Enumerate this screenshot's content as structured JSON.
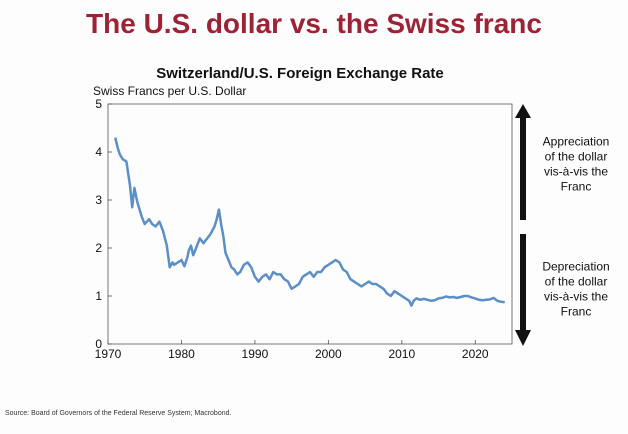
{
  "page": {
    "title": "The U.S. dollar vs. the Swiss franc",
    "source": "Source: Board of Governors of the Federal Reserve System; Macrobond."
  },
  "colors": {
    "title": "#9b2335",
    "line": "#5b8fc6",
    "arrow": "#111111"
  },
  "annotations": {
    "up": "Appreciation of the dollar vis-à-vis the Franc",
    "up_lines": [
      "Appreciation",
      "of the dollar",
      "vis-à-vis the",
      "Franc"
    ],
    "down": "Depreciation of the dollar vis-à-vis the Franc",
    "down_lines": [
      "Depreciation",
      "of the dollar",
      "vis-à-vis the",
      "Franc"
    ]
  },
  "chart_data": {
    "type": "line",
    "title": "Switzerland/U.S. Foreign Exchange Rate",
    "ylabel": "Swiss Francs per U.S. Dollar",
    "xlabel": "",
    "xlim": [
      1970,
      2025
    ],
    "ylim": [
      0,
      5
    ],
    "x_ticks": [
      1970,
      1980,
      1990,
      2000,
      2010,
      2020
    ],
    "y_ticks": [
      0,
      1,
      2,
      3,
      4,
      5
    ],
    "grid": false,
    "series": [
      {
        "x": [
          1971.0,
          1971.3,
          1971.6,
          1972.0,
          1972.5,
          1973.0,
          1973.3,
          1973.6,
          1974.0,
          1974.3,
          1974.6,
          1975.0,
          1975.3,
          1975.6,
          1976.0,
          1976.5,
          1977.0,
          1977.5,
          1978.0,
          1978.4,
          1978.8,
          1979.0,
          1979.5,
          1980.0,
          1980.4,
          1980.8,
          1981.0,
          1981.3,
          1981.6,
          1982.0,
          1982.5,
          1983.0,
          1983.5,
          1984.0,
          1984.5,
          1984.8,
          1985.1,
          1985.4,
          1985.7,
          1986.0,
          1986.4,
          1986.8,
          1987.2,
          1987.6,
          1988.0,
          1988.5,
          1989.0,
          1989.5,
          1990.0,
          1990.5,
          1991.0,
          1991.5,
          1992.0,
          1992.5,
          1993.0,
          1993.5,
          1994.0,
          1994.5,
          1995.0,
          1995.5,
          1996.0,
          1996.5,
          1997.0,
          1997.5,
          1998.0,
          1998.5,
          1999.0,
          1999.5,
          2000.0,
          2000.5,
          2001.0,
          2001.5,
          2002.0,
          2002.5,
          2003.0,
          2003.5,
          2004.0,
          2004.5,
          2005.0,
          2005.5,
          2006.0,
          2006.5,
          2007.0,
          2007.5,
          2008.0,
          2008.5,
          2009.0,
          2009.5,
          2010.0,
          2010.5,
          2011.0,
          2011.3,
          2011.6,
          2012.0,
          2012.5,
          2013.0,
          2013.5,
          2014.0,
          2014.5,
          2015.0,
          2015.5,
          2016.0,
          2016.5,
          2017.0,
          2017.5,
          2018.0,
          2018.5,
          2019.0,
          2019.5,
          2020.0,
          2020.5,
          2021.0,
          2021.5,
          2022.0,
          2022.5,
          2023.0,
          2023.5,
          2024.0
        ],
        "y": [
          4.3,
          4.1,
          3.95,
          3.85,
          3.8,
          3.3,
          2.85,
          3.25,
          2.95,
          2.8,
          2.65,
          2.5,
          2.55,
          2.6,
          2.5,
          2.45,
          2.55,
          2.35,
          2.05,
          1.6,
          1.7,
          1.65,
          1.7,
          1.75,
          1.62,
          1.8,
          1.95,
          2.05,
          1.85,
          2.0,
          2.2,
          2.1,
          2.2,
          2.3,
          2.45,
          2.6,
          2.8,
          2.5,
          2.25,
          1.9,
          1.75,
          1.6,
          1.55,
          1.45,
          1.5,
          1.65,
          1.7,
          1.6,
          1.4,
          1.3,
          1.4,
          1.45,
          1.35,
          1.5,
          1.45,
          1.45,
          1.35,
          1.3,
          1.15,
          1.2,
          1.25,
          1.4,
          1.45,
          1.5,
          1.4,
          1.5,
          1.5,
          1.6,
          1.65,
          1.7,
          1.75,
          1.7,
          1.55,
          1.5,
          1.35,
          1.3,
          1.25,
          1.2,
          1.25,
          1.3,
          1.25,
          1.25,
          1.2,
          1.15,
          1.05,
          1.0,
          1.1,
          1.05,
          1.0,
          0.95,
          0.9,
          0.8,
          0.9,
          0.95,
          0.92,
          0.94,
          0.92,
          0.9,
          0.91,
          0.95,
          0.96,
          0.99,
          0.97,
          0.98,
          0.96,
          0.98,
          1.0,
          1.0,
          0.97,
          0.95,
          0.92,
          0.91,
          0.92,
          0.93,
          0.96,
          0.9,
          0.88,
          0.87
        ]
      }
    ]
  }
}
